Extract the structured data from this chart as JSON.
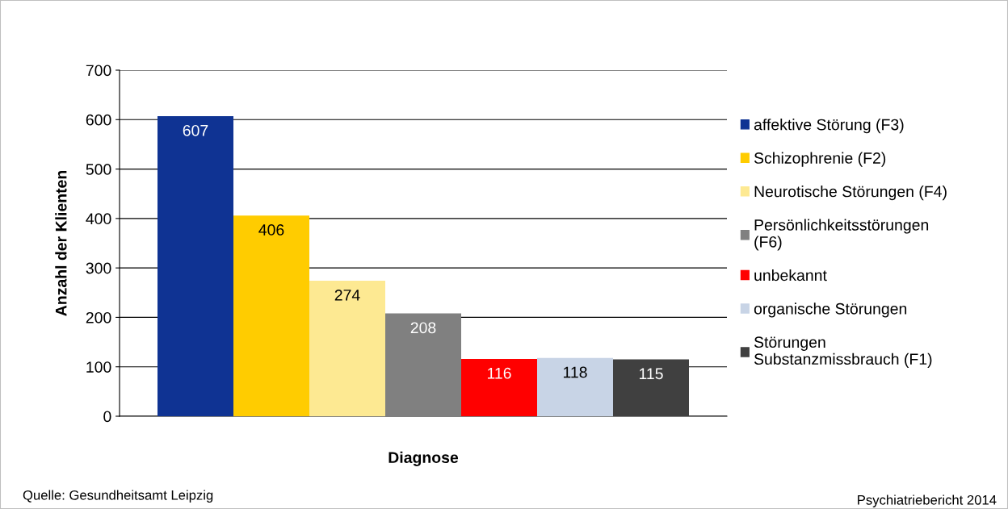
{
  "chart_data": {
    "type": "bar",
    "xlabel": "Diagnose",
    "ylabel": "Anzahl der Klienten",
    "categories": [
      null
    ],
    "series": [
      {
        "name": "affektive Störung (F3)",
        "color": "#0f3393",
        "values": [
          607
        ]
      },
      {
        "name": "Schizophrenie (F2)",
        "color": "#ffcc00",
        "values": [
          406
        ]
      },
      {
        "name": "Neurotische Störungen (F4)",
        "color": "#fde992",
        "values": [
          274
        ]
      },
      {
        "name": "Persönlichkeitsstörungen\n(F6)",
        "color": "#808080",
        "values": [
          208
        ]
      },
      {
        "name": "unbekannt",
        "color": "#ff0000",
        "values": [
          116
        ]
      },
      {
        "name": "organische Störungen",
        "color": "#c8d4e6",
        "values": [
          118
        ]
      },
      {
        "name": "Störungen\nSubstanzmissbrauch (F1)",
        "color": "#404040",
        "values": [
          115
        ]
      }
    ],
    "ylim": [
      0,
      700
    ],
    "yticks": [
      0,
      100,
      200,
      300,
      400,
      500,
      600,
      700
    ],
    "grid": "y",
    "legend": "right",
    "data_labels": true,
    "annotations": [
      "Quelle: Gesundheitsamt Leipzig",
      "Psychiatriebericht 2014"
    ]
  }
}
